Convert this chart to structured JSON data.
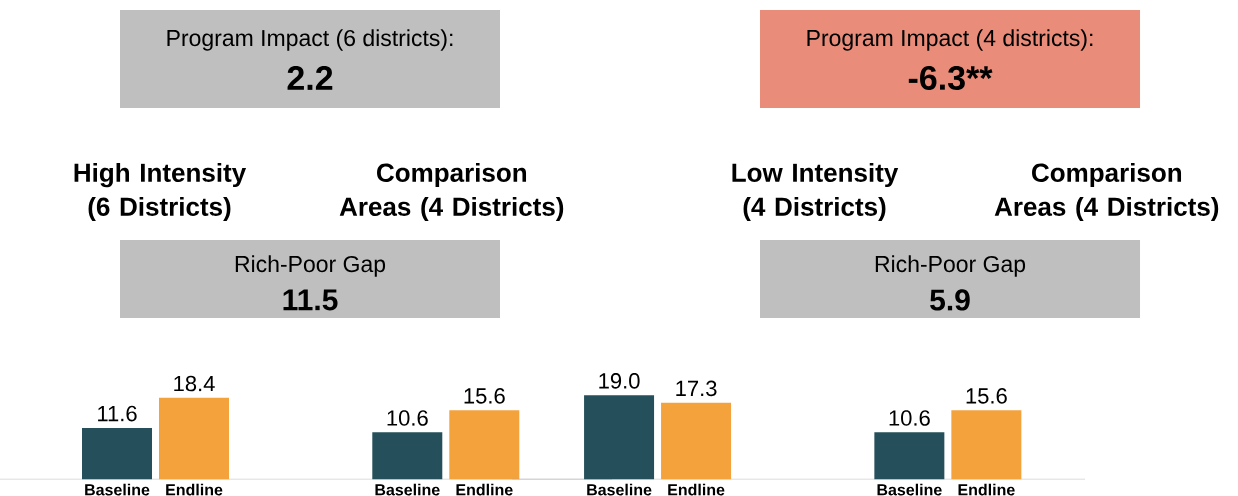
{
  "chart_data": [
    {
      "type": "bar",
      "title": "Program Impact (6 districts):",
      "subtitle": "2.2",
      "categories": [
        "Baseline",
        "Endline",
        "Baseline",
        "Endline"
      ],
      "values": [
        11.6,
        18.4,
        10.6,
        15.6
      ],
      "colors": [
        "#254f5a",
        "#f4a23c",
        "#254f5a",
        "#f4a23c"
      ],
      "value_labels": [
        "11.6",
        "18.4",
        "10.6",
        "15.6"
      ],
      "annotations": [
        "High Intensity (6 Districts)",
        "Comparison Areas (4 Districts)",
        "Rich-Poor Gap",
        "11.5"
      ]
    },
    {
      "type": "bar",
      "title": "Program Impact (4 districts):",
      "subtitle": "-6.3**",
      "categories": [
        "Baseline",
        "Endline",
        "Baseline",
        "Endline"
      ],
      "values": [
        19.0,
        17.3,
        10.6,
        15.6
      ],
      "colors": [
        "#254f5a",
        "#f4a23c",
        "#254f5a",
        "#f4a23c"
      ],
      "value_labels": [
        "19.0",
        "17.3",
        "10.6",
        "15.6"
      ],
      "annotations": [
        "Low Intensity (4 Districts)",
        "Comparison Areas (4 Districts)",
        "Rich-Poor Gap",
        "5.9"
      ]
    }
  ]
}
